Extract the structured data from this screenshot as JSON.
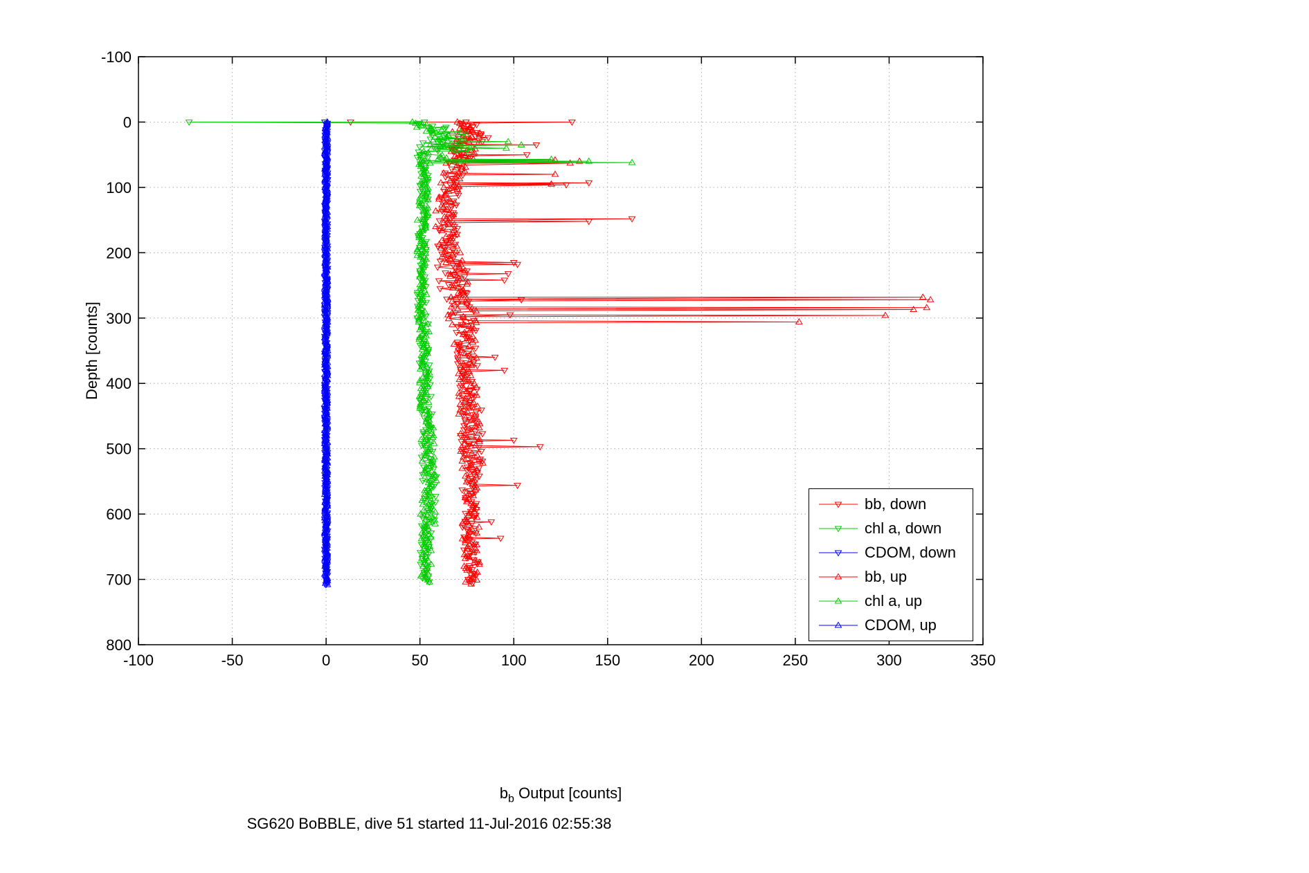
{
  "figure": {
    "background": "#ffffff"
  },
  "chart_data": {
    "type": "scatter",
    "title": "SG620 BoBBLE, dive 51 started 11-Jul-2016 02:55:38",
    "xlabel": "b_b Output [counts]",
    "xlabel_parts": {
      "base": "b",
      "sub": "b",
      "rest": " Output [counts]"
    },
    "ylabel": "Depth [counts]",
    "xlim": [
      -100,
      350
    ],
    "ylim": [
      -100,
      800
    ],
    "y_axis_direction": "reversed (depth increases downward)",
    "xticks": [
      -100,
      -50,
      0,
      50,
      100,
      150,
      200,
      250,
      300,
      350
    ],
    "yticks": [
      -100,
      0,
      100,
      200,
      300,
      400,
      500,
      600,
      700,
      800
    ],
    "grid": "dotted",
    "grid_color": "#ababab",
    "legend": {
      "position": "lower right",
      "entries": [
        {
          "label": "bb, down"
        },
        {
          "label": "chl a, down"
        },
        {
          "label": "CDOM, down"
        },
        {
          "label": "bb, up"
        },
        {
          "label": "chl a, up"
        },
        {
          "label": "CDOM, up"
        }
      ]
    },
    "series": [
      {
        "id": "bb-down",
        "name": "bb, down",
        "color": "#ff0000",
        "marker": "triangle-down",
        "line_width": 1,
        "segments": [
          {
            "d0": 0,
            "d1": 12,
            "x0": 74,
            "x1": 77,
            "jitter": 6,
            "step": 2
          },
          {
            "d0": 12,
            "d1": 36,
            "x0": 79,
            "x1": 76,
            "jitter": 9,
            "step": 2
          },
          {
            "d0": 36,
            "d1": 60,
            "x0": 74,
            "x1": 70,
            "jitter": 7,
            "step": 2
          },
          {
            "d0": 60,
            "d1": 100,
            "x0": 70,
            "x1": 66,
            "jitter": 5,
            "step": 3
          },
          {
            "d0": 100,
            "d1": 160,
            "x0": 66,
            "x1": 64,
            "jitter": 5,
            "step": 3
          },
          {
            "d0": 160,
            "d1": 210,
            "x0": 64,
            "x1": 66,
            "jitter": 6,
            "step": 3
          },
          {
            "d0": 210,
            "d1": 262,
            "x0": 66,
            "x1": 69,
            "jitter": 8,
            "step": 3
          },
          {
            "d0": 262,
            "d1": 310,
            "x0": 70,
            "x1": 74,
            "jitter": 7,
            "step": 3
          },
          {
            "d0": 310,
            "d1": 420,
            "x0": 74,
            "x1": 77,
            "jitter": 6,
            "step": 3
          },
          {
            "d0": 420,
            "d1": 530,
            "x0": 77,
            "x1": 78,
            "jitter": 6,
            "step": 3
          },
          {
            "d0": 530,
            "d1": 640,
            "x0": 77,
            "x1": 77,
            "jitter": 5,
            "step": 3
          },
          {
            "d0": 640,
            "d1": 708,
            "x0": 77,
            "x1": 78,
            "jitter": 4,
            "step": 3
          }
        ],
        "spikes": [
          [
            0,
            13
          ],
          [
            0,
            131
          ],
          [
            35,
            112
          ],
          [
            50,
            107
          ],
          [
            93,
            140
          ],
          [
            96,
            128
          ],
          [
            148,
            163
          ],
          [
            152,
            140
          ],
          [
            215,
            100
          ],
          [
            218,
            102
          ],
          [
            232,
            97
          ],
          [
            242,
            95
          ],
          [
            272,
            104
          ],
          [
            295,
            98
          ],
          [
            360,
            90
          ],
          [
            380,
            95
          ],
          [
            487,
            100
          ],
          [
            497,
            114
          ],
          [
            556,
            102
          ],
          [
            612,
            88
          ],
          [
            637,
            93
          ]
        ]
      },
      {
        "id": "chla-down",
        "name": "chl a, down",
        "color": "#00cc00",
        "marker": "triangle-down",
        "line_width": 1,
        "segments": [
          {
            "d0": 0,
            "d1": 8,
            "x0": 52,
            "x1": 53,
            "jitter": 4,
            "step": 2
          },
          {
            "d0": 8,
            "d1": 30,
            "x0": 56,
            "x1": 60,
            "jitter": 8,
            "step": 2
          },
          {
            "d0": 30,
            "d1": 55,
            "x0": 58,
            "x1": 54,
            "jitter": 7,
            "step": 2
          },
          {
            "d0": 55,
            "d1": 70,
            "x0": 53,
            "x1": 52,
            "jitter": 3,
            "step": 3
          },
          {
            "d0": 70,
            "d1": 150,
            "x0": 52,
            "x1": 52,
            "jitter": 2.5,
            "step": 3
          },
          {
            "d0": 150,
            "d1": 300,
            "x0": 51,
            "x1": 51,
            "jitter": 2.5,
            "step": 3
          },
          {
            "d0": 300,
            "d1": 420,
            "x0": 52,
            "x1": 53,
            "jitter": 3,
            "step": 3
          },
          {
            "d0": 420,
            "d1": 540,
            "x0": 53,
            "x1": 54,
            "jitter": 3.5,
            "step": 3
          },
          {
            "d0": 540,
            "d1": 620,
            "x0": 55,
            "x1": 54,
            "jitter": 4,
            "step": 3
          },
          {
            "d0": 620,
            "d1": 706,
            "x0": 53,
            "x1": 53,
            "jitter": 3,
            "step": 3
          }
        ],
        "spikes": [
          [
            0,
            -73
          ],
          [
            25,
            75
          ],
          [
            38,
            72
          ]
        ]
      },
      {
        "id": "cdom-down",
        "name": "CDOM, down",
        "color": "#0000ff",
        "marker": "triangle-down",
        "line_width": 2,
        "segments": [
          {
            "d0": 0,
            "d1": 708,
            "x0": 0,
            "x1": 0,
            "jitter": 0.8,
            "step": 2
          }
        ],
        "spikes": []
      },
      {
        "id": "bb-up",
        "name": "bb, up",
        "color": "#ff0000",
        "marker": "triangle-up",
        "line_width": 1,
        "segments": [
          {
            "d0": 0,
            "d1": 15,
            "x0": 72,
            "x1": 74,
            "jitter": 6,
            "step": 2
          },
          {
            "d0": 15,
            "d1": 60,
            "x0": 75,
            "x1": 72,
            "jitter": 8,
            "step": 2
          },
          {
            "d0": 60,
            "d1": 100,
            "x0": 70,
            "x1": 66,
            "jitter": 6,
            "step": 3
          },
          {
            "d0": 100,
            "d1": 200,
            "x0": 64,
            "x1": 64,
            "jitter": 6,
            "step": 3
          },
          {
            "d0": 200,
            "d1": 262,
            "x0": 66,
            "x1": 70,
            "jitter": 7,
            "step": 3
          },
          {
            "d0": 262,
            "d1": 310,
            "x0": 72,
            "x1": 72,
            "jitter": 8,
            "step": 3
          },
          {
            "d0": 310,
            "d1": 420,
            "x0": 73,
            "x1": 76,
            "jitter": 6,
            "step": 3
          },
          {
            "d0": 420,
            "d1": 530,
            "x0": 76,
            "x1": 78,
            "jitter": 6,
            "step": 3
          },
          {
            "d0": 530,
            "d1": 708,
            "x0": 76,
            "x1": 78,
            "jitter": 5,
            "step": 3
          }
        ],
        "spikes": [
          [
            58,
            122
          ],
          [
            60,
            135
          ],
          [
            63,
            130
          ],
          [
            80,
            122
          ],
          [
            95,
            120
          ],
          [
            268,
            318
          ],
          [
            272,
            322
          ],
          [
            284,
            320
          ],
          [
            287,
            313
          ],
          [
            296,
            298
          ],
          [
            306,
            252
          ]
        ]
      },
      {
        "id": "chla-up",
        "name": "chl a, up",
        "color": "#00cc00",
        "marker": "triangle-up",
        "line_width": 1,
        "segments": [
          {
            "d0": 0,
            "d1": 15,
            "x0": 50,
            "x1": 54,
            "jitter": 5,
            "step": 2
          },
          {
            "d0": 15,
            "d1": 45,
            "x0": 62,
            "x1": 68,
            "jitter": 12,
            "step": 2
          },
          {
            "d0": 45,
            "d1": 65,
            "x0": 60,
            "x1": 54,
            "jitter": 8,
            "step": 2
          },
          {
            "d0": 65,
            "d1": 150,
            "x0": 52,
            "x1": 52,
            "jitter": 2.5,
            "step": 3
          },
          {
            "d0": 150,
            "d1": 300,
            "x0": 51,
            "x1": 51,
            "jitter": 2.5,
            "step": 3
          },
          {
            "d0": 300,
            "d1": 420,
            "x0": 52,
            "x1": 53,
            "jitter": 3,
            "step": 3
          },
          {
            "d0": 420,
            "d1": 540,
            "x0": 53,
            "x1": 55,
            "jitter": 3.5,
            "step": 3
          },
          {
            "d0": 540,
            "d1": 620,
            "x0": 55,
            "x1": 54,
            "jitter": 4,
            "step": 3
          },
          {
            "d0": 620,
            "d1": 706,
            "x0": 53,
            "x1": 53,
            "jitter": 3,
            "step": 3
          }
        ],
        "spikes": [
          [
            30,
            97
          ],
          [
            35,
            104
          ],
          [
            40,
            96
          ],
          [
            57,
            120
          ],
          [
            60,
            140
          ],
          [
            62,
            163
          ]
        ]
      },
      {
        "id": "cdom-up",
        "name": "CDOM, up",
        "color": "#0000ff",
        "marker": "triangle-up",
        "line_width": 2,
        "segments": [
          {
            "d0": 0,
            "d1": 708,
            "x0": 0,
            "x1": 0,
            "jitter": 0.8,
            "step": 2
          }
        ],
        "spikes": []
      }
    ]
  }
}
